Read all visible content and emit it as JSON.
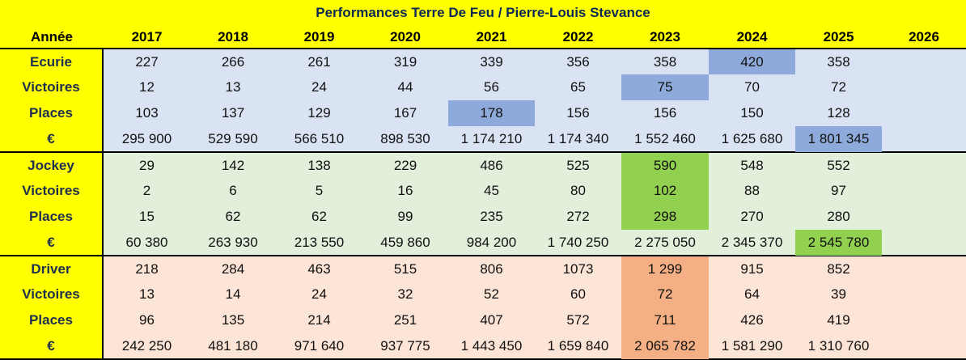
{
  "title": "Performances Terre De Feu / Pierre-Louis Stevance",
  "header": {
    "label": "Année",
    "years": [
      "2017",
      "2018",
      "2019",
      "2020",
      "2021",
      "2022",
      "2023",
      "2024",
      "2025",
      "2026"
    ]
  },
  "sections": [
    {
      "key": "ecurie",
      "bg": "#dae3f3",
      "highlight": "#8eaadb",
      "rows": [
        {
          "label": "Ecurie",
          "values": [
            "227",
            "266",
            "261",
            "319",
            "339",
            "356",
            "358",
            "420",
            "358",
            ""
          ],
          "hi": [
            7
          ]
        },
        {
          "label": "Victoires",
          "values": [
            "12",
            "13",
            "24",
            "44",
            "56",
            "65",
            "75",
            "70",
            "72",
            ""
          ],
          "hi": [
            6
          ]
        },
        {
          "label": "Places",
          "values": [
            "103",
            "137",
            "129",
            "167",
            "178",
            "156",
            "156",
            "150",
            "128",
            ""
          ],
          "hi": [
            4
          ]
        },
        {
          "label": "€",
          "values": [
            "295 900",
            "529 590",
            "566 510",
            "898 530",
            "1 174 210",
            "1 174 340",
            "1 552 460",
            "1 625 680",
            "1 801 345",
            ""
          ],
          "hi": [
            8
          ]
        }
      ]
    },
    {
      "key": "jockey",
      "bg": "#e2efda",
      "highlight": "#92d050",
      "rows": [
        {
          "label": "Jockey",
          "values": [
            "29",
            "142",
            "138",
            "229",
            "486",
            "525",
            "590",
            "548",
            "552",
            ""
          ],
          "hi": [
            6
          ]
        },
        {
          "label": "Victoires",
          "values": [
            "2",
            "6",
            "5",
            "16",
            "45",
            "80",
            "102",
            "88",
            "97",
            ""
          ],
          "hi": [
            6
          ]
        },
        {
          "label": "Places",
          "values": [
            "15",
            "62",
            "62",
            "99",
            "235",
            "272",
            "298",
            "270",
            "280",
            ""
          ],
          "hi": [
            6
          ]
        },
        {
          "label": "€",
          "values": [
            "60 380",
            "263 930",
            "213 550",
            "459 860",
            "984 200",
            "1 740 250",
            "2 275 050",
            "2 345 370",
            "2 545 780",
            ""
          ],
          "hi": [
            8
          ]
        }
      ]
    },
    {
      "key": "driver",
      "bg": "#fce4d6",
      "highlight": "#f4b084",
      "rows": [
        {
          "label": "Driver",
          "values": [
            "218",
            "284",
            "463",
            "515",
            "806",
            "1073",
            "1 299",
            "915",
            "852",
            ""
          ],
          "hi": [
            6
          ]
        },
        {
          "label": "Victoires",
          "values": [
            "13",
            "14",
            "24",
            "32",
            "52",
            "60",
            "72",
            "64",
            "39",
            ""
          ],
          "hi": [
            6
          ]
        },
        {
          "label": "Places",
          "values": [
            "96",
            "135",
            "214",
            "251",
            "407",
            "572",
            "711",
            "426",
            "419",
            ""
          ],
          "hi": [
            6
          ]
        },
        {
          "label": "€",
          "values": [
            "242 250",
            "481 180",
            "971 640",
            "937 775",
            "1 443 450",
            "1 659 840",
            "2 065 782",
            "1 581 290",
            "1 310 760",
            ""
          ],
          "hi": [
            6
          ]
        }
      ]
    }
  ]
}
